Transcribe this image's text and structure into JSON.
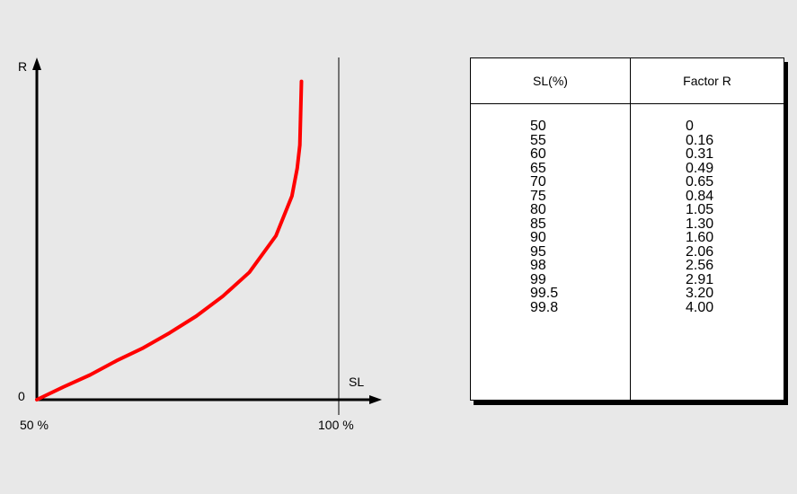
{
  "chart_data": {
    "type": "line",
    "title": "",
    "xlabel": "SL",
    "ylabel": "R",
    "x_tick_labels": [
      "50 %",
      "100 %"
    ],
    "y_tick_labels": [
      "0"
    ],
    "xlim": [
      50,
      100
    ],
    "ylim": [
      0,
      4.3
    ],
    "series": [
      {
        "color": "#ff0000",
        "x": [
          50,
          55,
          60,
          65,
          70,
          75,
          80,
          85,
          90,
          95,
          98,
          99,
          99.5,
          99.8
        ],
        "y": [
          0,
          0.16,
          0.31,
          0.49,
          0.65,
          0.84,
          1.05,
          1.3,
          1.6,
          2.06,
          2.56,
          2.91,
          3.2,
          4.0
        ]
      }
    ]
  },
  "table": {
    "headers": [
      "SL(%)",
      "Factor R"
    ],
    "rows": [
      [
        "50",
        "0"
      ],
      [
        "55",
        "0.16"
      ],
      [
        "60",
        "0.31"
      ],
      [
        "65",
        "0.49"
      ],
      [
        "70",
        "0.65"
      ],
      [
        "75",
        "0.84"
      ],
      [
        "80",
        "1.05"
      ],
      [
        "85",
        "1.30"
      ],
      [
        "90",
        "1.60"
      ],
      [
        "95",
        "2.06"
      ],
      [
        "98",
        "2.56"
      ],
      [
        "99",
        "2.91"
      ],
      [
        "99.5",
        "3.20"
      ],
      [
        "99.8",
        "4.00"
      ]
    ]
  },
  "colors": {
    "background": "#e8e8e8",
    "curve": "#ff0000",
    "axis": "#000000"
  }
}
